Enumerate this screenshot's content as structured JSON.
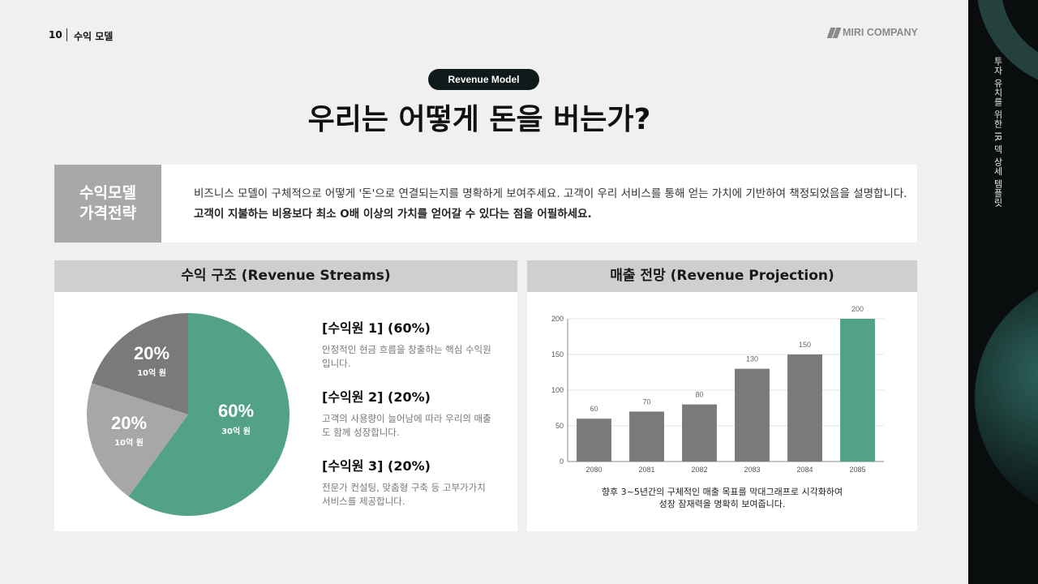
{
  "header": {
    "page_number": "10",
    "section": "수익 모델",
    "logo_text": "MIRI COMPANY"
  },
  "side_panel": {
    "vertical_text": "투자 유치를 위한 IR 덱 상세 템플릿"
  },
  "badge": "Revenue Model",
  "title": "우리는 어떻게 돈을 버는가?",
  "intro": {
    "label_line1": "수익모델",
    "label_line2": "가격전략",
    "text_plain": "비즈니스 모델이 구체적으로 어떻게 '돈'으로 연결되는지를 명확하게 보여주세요. 고객이 우리 서비스를 통해 얻는 가치에 기반하여 책정되었음을 설명합니다. ",
    "text_bold": "고객이 지불하는 비용보다 최소 O배 이상의 가치를 얻어갈 수 있다는 점을 어필하세요."
  },
  "revenue_streams": {
    "heading": "수익 구조 (Revenue Streams)",
    "slices": [
      {
        "pct": "60%",
        "amount": "30억 원",
        "value": 60,
        "color": "#52a386"
      },
      {
        "pct": "20%",
        "amount": "10억 원",
        "value": 20,
        "color": "#a7a7a7"
      },
      {
        "pct": "20%",
        "amount": "10억 원",
        "value": 20,
        "color": "#7b7a7b"
      }
    ],
    "items": [
      {
        "title": "[수익원 1] (60%)",
        "desc": "안정적인 현금 흐름을 창출하는 핵심 수익원입니다."
      },
      {
        "title": "[수익원 2] (20%)",
        "desc": "고객의 사용량이 늘어남에 따라 우리의 매출도 함께 성장합니다."
      },
      {
        "title": "[수익원 3] (20%)",
        "desc": "전문가 컨설팅, 맞춤형 구축 등 고부가가치 서비스를 제공합니다."
      }
    ]
  },
  "projection": {
    "heading": "매출 전망 (Revenue Projection)",
    "caption_line1": "향후 3~5년간의 구체적인 매출 목표를 막대그래프로 시각화하여",
    "caption_line2": "성장 잠재력을 명확히 보여줍니다."
  },
  "chart_data": [
    {
      "type": "pie",
      "labels": [
        "60%",
        "20%",
        "20%"
      ],
      "values": [
        60,
        20,
        20
      ],
      "annotations": [
        "30억 원",
        "10억 원",
        "10억 원"
      ],
      "colors": [
        "#52a386",
        "#a7a7a7",
        "#7b7a7b"
      ]
    },
    {
      "type": "bar",
      "categories": [
        "2080",
        "2081",
        "2082",
        "2083",
        "2084",
        "2085"
      ],
      "values": [
        60,
        70,
        80,
        130,
        150,
        200
      ],
      "ylim": [
        0,
        200
      ],
      "yticks": [
        0,
        50,
        100,
        150,
        200
      ],
      "bar_color": "#7b7a7b",
      "highlight_color": "#52a386",
      "highlight_index": 5,
      "grid": true
    }
  ]
}
